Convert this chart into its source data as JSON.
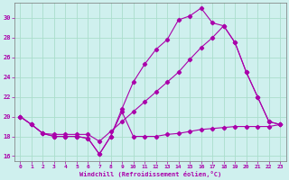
{
  "xlabel": "Windchill (Refroidissement éolien,°C)",
  "background_color": "#cff0ee",
  "grid_color": "#aaddcc",
  "line_color": "#aa00aa",
  "xlim": [
    -0.5,
    23.5
  ],
  "ylim": [
    15.5,
    31.5
  ],
  "xticks": [
    0,
    1,
    2,
    3,
    4,
    5,
    6,
    7,
    8,
    9,
    10,
    11,
    12,
    13,
    14,
    15,
    16,
    17,
    18,
    19,
    20,
    21,
    22,
    23
  ],
  "yticks": [
    16,
    18,
    20,
    22,
    24,
    26,
    28,
    30
  ],
  "line1_x": [
    0,
    1,
    2,
    3,
    4,
    5,
    6,
    7,
    8,
    9,
    10,
    11,
    12,
    13,
    14,
    15,
    16,
    17,
    18,
    19,
    20,
    21,
    22,
    23
  ],
  "line1_y": [
    20.0,
    19.2,
    18.3,
    18.0,
    18.0,
    18.0,
    17.8,
    16.2,
    18.0,
    20.5,
    18.0,
    18.0,
    18.0,
    18.2,
    18.3,
    18.5,
    18.7,
    18.8,
    18.9,
    19.0,
    19.0,
    19.0,
    19.0,
    19.2
  ],
  "line2_x": [
    0,
    1,
    2,
    3,
    4,
    5,
    6,
    7,
    8,
    9,
    10,
    11,
    12,
    13,
    14,
    15,
    16,
    17,
    18,
    19,
    20,
    21,
    22,
    23
  ],
  "line2_y": [
    20.0,
    19.2,
    18.3,
    18.0,
    18.0,
    18.0,
    17.8,
    16.2,
    18.0,
    20.8,
    23.5,
    25.3,
    26.8,
    27.8,
    29.8,
    30.2,
    31.0,
    29.5,
    29.2,
    27.5,
    24.5,
    22.0,
    19.5,
    19.2
  ],
  "line3_x": [
    0,
    1,
    2,
    3,
    4,
    5,
    6,
    7,
    8,
    9,
    10,
    11,
    12,
    13,
    14,
    15,
    16,
    17,
    18,
    19,
    20,
    21,
    22,
    23
  ],
  "line3_y": [
    20.0,
    19.2,
    18.3,
    18.2,
    18.2,
    18.2,
    18.2,
    17.5,
    18.5,
    19.5,
    20.5,
    21.5,
    22.5,
    23.5,
    24.5,
    25.8,
    27.0,
    28.0,
    29.2,
    27.5,
    24.5,
    22.0,
    19.5,
    19.2
  ]
}
